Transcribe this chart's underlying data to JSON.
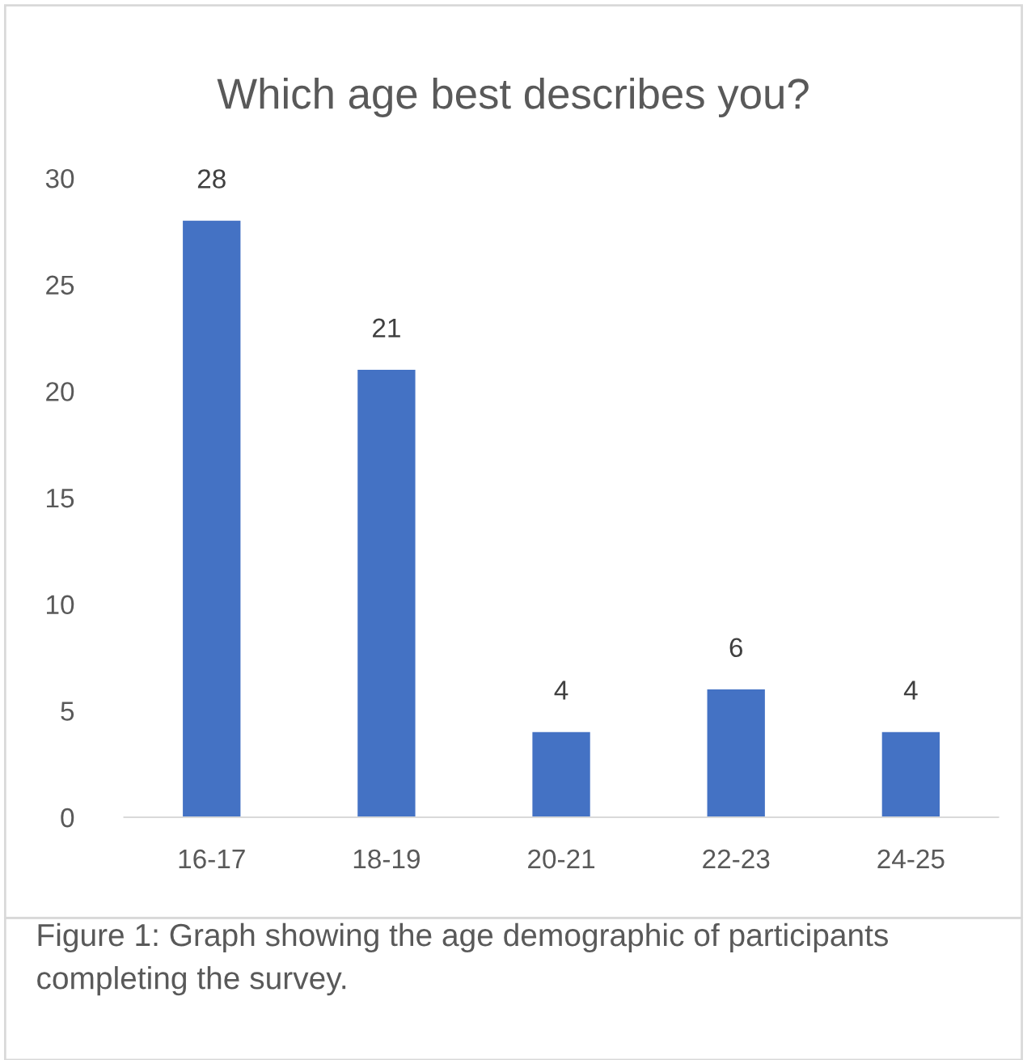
{
  "chart_data": {
    "type": "bar",
    "title": "Which age best describes you?",
    "categories": [
      "16-17",
      "18-19",
      "20-21",
      "22-23",
      "24-25"
    ],
    "values": [
      28,
      21,
      4,
      6,
      4
    ],
    "color": "#4472c4",
    "ylim": [
      0,
      30
    ],
    "yticks": [
      0,
      5,
      10,
      15,
      20,
      25,
      30
    ],
    "grid": false,
    "data_labels": true,
    "annotations": [
      "Figure 1: Graph showing the age demographic of participants completing the survey."
    ]
  }
}
